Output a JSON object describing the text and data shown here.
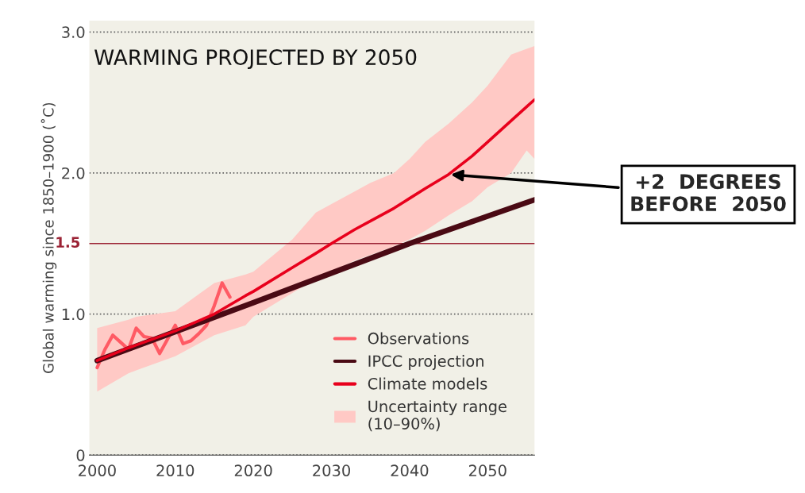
{
  "chart_data": {
    "type": "line",
    "title": "WARMING PROJECTED BY 2050",
    "ylabel": "Global warming since 1850–1900 (˚C)",
    "xlim": [
      1999,
      2056
    ],
    "xticks": [
      2000,
      2010,
      2020,
      2030,
      2040,
      2050
    ],
    "ylim": [
      0,
      3.08
    ],
    "yticks": [
      0,
      {
        "value": 1,
        "label": "1.0"
      },
      {
        "value": 2,
        "label": "2.0"
      },
      {
        "value": 3,
        "label": "3.0"
      }
    ],
    "grid": "y",
    "legend": "bottom right",
    "ref_lines": [
      {
        "axis": "y",
        "value": 1.5,
        "label": "1.5",
        "color": "#9b2335"
      }
    ],
    "annotations": [
      {
        "text": "+2  DEGREES\nBEFORE  2050",
        "x": 2045,
        "y": 1.99
      }
    ],
    "series": [
      {
        "type": "area",
        "name": "Uncertainty range\n(10–90%)",
        "color": "#ffc9c5"
      },
      {
        "name": "Observations",
        "color": "#ff5a64",
        "x": [
          2000,
          2001,
          2002,
          2003,
          2004,
          2005,
          2006,
          2007,
          2008,
          2009,
          2010,
          2011,
          2012,
          2013,
          2014,
          2015,
          2016,
          2017
        ],
        "values": [
          0.62,
          0.75,
          0.85,
          0.8,
          0.75,
          0.9,
          0.84,
          0.83,
          0.72,
          0.82,
          0.92,
          0.79,
          0.81,
          0.86,
          0.92,
          1.06,
          1.22,
          1.12
        ]
      },
      {
        "name": "IPCC projection",
        "color": "#4a0a14",
        "x": [
          2000,
          2020,
          2040,
          2056
        ],
        "values": [
          0.67,
          1.08,
          1.5,
          1.81
        ]
      },
      {
        "name": "Climate models",
        "color": "#e8001c",
        "x": [
          2000,
          2004,
          2005,
          2010,
          2015,
          2019,
          2020,
          2025,
          2028,
          2030,
          2033,
          2035,
          2038,
          2040,
          2042,
          2045,
          2048,
          2050,
          2053,
          2055,
          2056
        ],
        "values": [
          0.67,
          0.76,
          0.78,
          0.88,
          1.0,
          1.13,
          1.16,
          1.33,
          1.43,
          1.5,
          1.6,
          1.66,
          1.75,
          1.82,
          1.89,
          1.99,
          2.12,
          2.22,
          2.37,
          2.47,
          2.52
        ],
        "lower": [
          0.45,
          0.58,
          0.6,
          0.7,
          0.85,
          0.92,
          0.98,
          1.15,
          1.25,
          1.3,
          1.38,
          1.42,
          1.48,
          1.53,
          1.59,
          1.7,
          1.8,
          1.9,
          2.0,
          2.16,
          2.1
        ],
        "upper": [
          0.9,
          0.96,
          0.98,
          1.02,
          1.22,
          1.28,
          1.3,
          1.53,
          1.72,
          1.78,
          1.87,
          1.93,
          2.0,
          2.1,
          2.22,
          2.35,
          2.5,
          2.62,
          2.84,
          2.88,
          2.9
        ]
      }
    ]
  }
}
